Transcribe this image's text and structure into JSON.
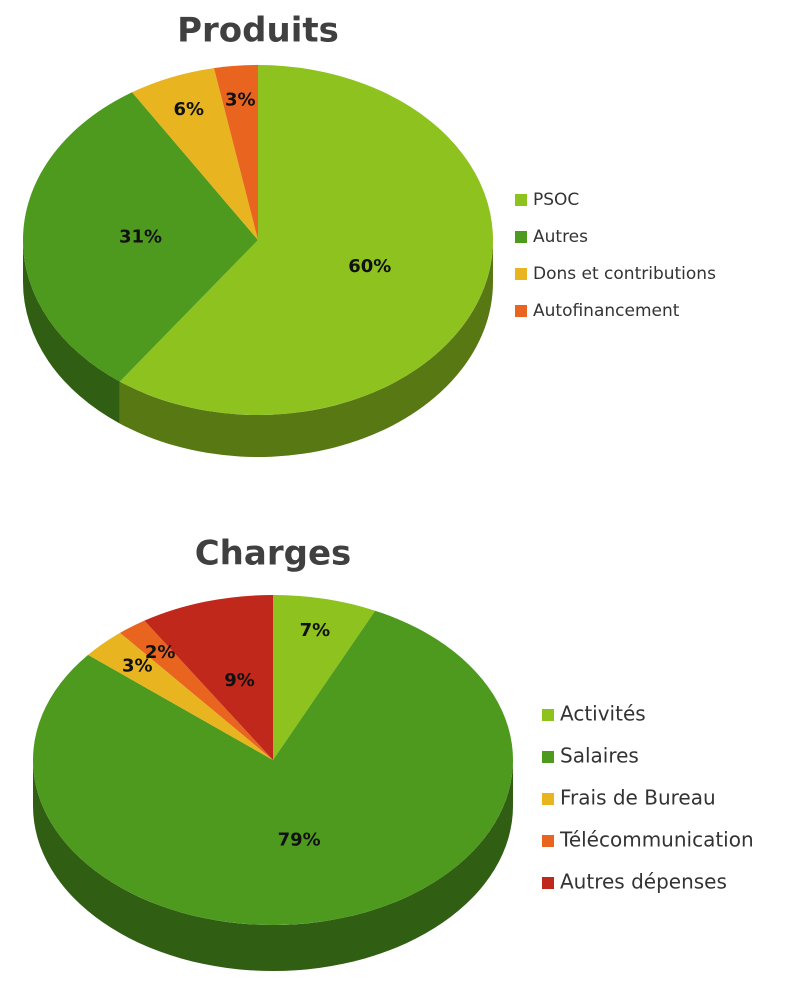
{
  "chart_data": [
    {
      "type": "pie",
      "title": "Produits",
      "categories": [
        "PSOC",
        "Autres",
        "Dons et contributions",
        "Autofinancement"
      ],
      "values": [
        60,
        31,
        6,
        3
      ],
      "value_labels": [
        "60%",
        "31%",
        "6%",
        "3%"
      ],
      "colors": [
        "#8dc21f",
        "#4e9a1f",
        "#e8b520",
        "#e8641f"
      ],
      "legend": "right"
    },
    {
      "type": "pie",
      "title": "Charges",
      "categories": [
        "Activités",
        "Salaires",
        "Frais de Bureau",
        "Télécommunication",
        "Autres dépenses"
      ],
      "values": [
        7,
        79,
        3,
        2,
        9
      ],
      "value_labels": [
        "7%",
        "79%",
        "3%",
        "2%",
        "9%"
      ],
      "colors": [
        "#8dc21f",
        "#4e9a1f",
        "#e8b520",
        "#e8641f",
        "#c0281c"
      ],
      "legend": "right"
    }
  ]
}
